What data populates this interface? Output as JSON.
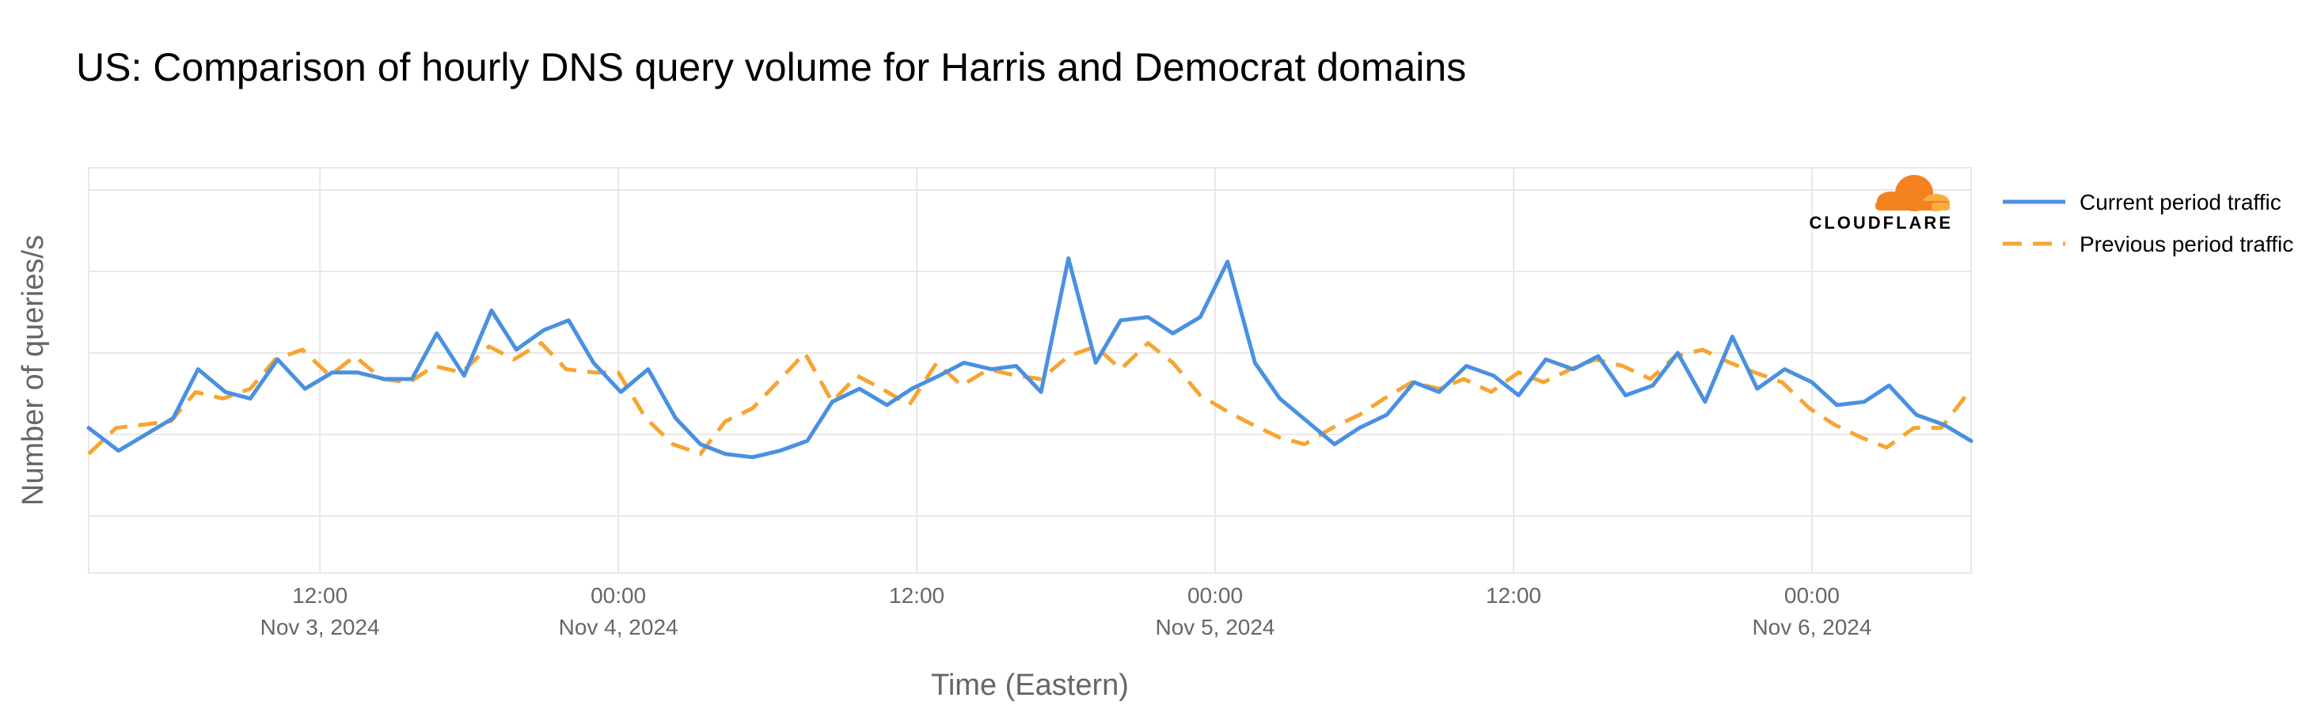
{
  "chart_data": {
    "type": "line",
    "title": "US: Comparison of hourly DNS query volume for Harris and Democrat domains",
    "xlabel": "Time (Eastern)",
    "ylabel": "Number of queries/s",
    "y_tick_labels_shown": false,
    "x_tick_labels": [
      {
        "time": "12:00",
        "date": "Nov 3, 2024",
        "hour": 12
      },
      {
        "time": "00:00",
        "date": "Nov 4, 2024",
        "hour": 24
      },
      {
        "time": "12:00",
        "date": "",
        "hour": 36
      },
      {
        "time": "00:00",
        "date": "Nov 5, 2024",
        "hour": 48
      },
      {
        "time": "12:00",
        "date": "",
        "hour": 60
      },
      {
        "time": "00:00",
        "date": "Nov 6, 2024",
        "hour": 72
      }
    ],
    "xlim": [
      2.7,
      78.4
    ],
    "ylim": [
      0,
      1
    ],
    "grid": true,
    "legend_position": "right",
    "series": [
      {
        "name": "Current period traffic",
        "color": "#4a90e2",
        "style": "solid",
        "x": [
          2.7,
          3.9,
          5.0,
          6.1,
          7.1,
          8.2,
          9.2,
          10.3,
          11.4,
          12.5,
          13.5,
          14.6,
          15.7,
          16.7,
          17.8,
          18.9,
          19.9,
          21.0,
          22.0,
          23.0,
          24.1,
          25.2,
          26.3,
          27.3,
          28.3,
          29.4,
          30.5,
          31.6,
          32.6,
          33.7,
          34.8,
          35.8,
          36.9,
          37.9,
          39.0,
          40.0,
          41.0,
          42.1,
          43.2,
          44.2,
          45.3,
          46.3,
          47.4,
          48.5,
          49.6,
          50.6,
          51.7,
          52.8,
          53.8,
          54.9,
          56.0,
          57.0,
          58.1,
          59.2,
          60.2,
          61.3,
          62.4,
          63.4,
          64.5,
          65.6,
          66.6,
          67.7,
          68.8,
          69.8,
          70.9,
          72.0,
          73.0,
          74.1,
          75.1,
          76.2,
          77.3,
          78.4
        ],
        "values": [
          0.27,
          0.2,
          0.25,
          0.3,
          0.45,
          0.38,
          0.36,
          0.48,
          0.39,
          0.44,
          0.44,
          0.42,
          0.42,
          0.56,
          0.43,
          0.63,
          0.51,
          0.57,
          0.6,
          0.47,
          0.38,
          0.45,
          0.3,
          0.22,
          0.19,
          0.18,
          0.2,
          0.23,
          0.35,
          0.39,
          0.34,
          0.39,
          0.43,
          0.47,
          0.45,
          0.46,
          0.38,
          0.79,
          0.47,
          0.6,
          0.61,
          0.56,
          0.61,
          0.78,
          0.47,
          0.36,
          0.29,
          0.22,
          0.27,
          0.31,
          0.41,
          0.38,
          0.46,
          0.43,
          0.37,
          0.48,
          0.45,
          0.49,
          0.37,
          0.4,
          0.5,
          0.35,
          0.55,
          0.39,
          0.45,
          0.41,
          0.34,
          0.35,
          0.4,
          0.31,
          0.28,
          0.23
        ]
      },
      {
        "name": "Previous period traffic",
        "color": "#f6a532",
        "style": "dashed",
        "x": [
          2.7,
          3.8,
          4.9,
          6.0,
          7.0,
          8.1,
          9.2,
          10.2,
          11.3,
          12.4,
          13.4,
          14.5,
          15.6,
          16.6,
          17.7,
          18.8,
          19.8,
          20.9,
          21.9,
          23.0,
          24.0,
          25.1,
          26.2,
          27.3,
          28.3,
          29.4,
          30.4,
          31.5,
          32.6,
          33.6,
          34.6,
          35.7,
          36.8,
          37.8,
          38.9,
          40.0,
          41.0,
          42.1,
          43.2,
          44.2,
          45.3,
          46.3,
          47.4,
          48.5,
          49.5,
          50.6,
          51.6,
          52.7,
          53.8,
          54.8,
          55.9,
          57.0,
          58.0,
          59.1,
          60.2,
          61.2,
          62.3,
          63.3,
          64.4,
          65.5,
          66.5,
          67.6,
          68.7,
          69.7,
          70.8,
          71.9,
          72.9,
          74.0,
          75.0,
          76.1,
          77.2,
          78.3
        ],
        "values": [
          0.19,
          0.27,
          0.28,
          0.29,
          0.38,
          0.36,
          0.39,
          0.48,
          0.51,
          0.43,
          0.49,
          0.42,
          0.41,
          0.46,
          0.44,
          0.52,
          0.48,
          0.53,
          0.45,
          0.44,
          0.44,
          0.3,
          0.22,
          0.19,
          0.29,
          0.33,
          0.41,
          0.5,
          0.35,
          0.43,
          0.39,
          0.34,
          0.47,
          0.4,
          0.45,
          0.43,
          0.42,
          0.49,
          0.52,
          0.45,
          0.53,
          0.47,
          0.37,
          0.32,
          0.28,
          0.24,
          0.22,
          0.27,
          0.31,
          0.36,
          0.41,
          0.39,
          0.42,
          0.38,
          0.44,
          0.41,
          0.45,
          0.48,
          0.46,
          0.42,
          0.49,
          0.51,
          0.47,
          0.44,
          0.41,
          0.33,
          0.28,
          0.24,
          0.21,
          0.27,
          0.27,
          0.38
        ]
      }
    ]
  },
  "brand": {
    "name": "CLOUDFLARE",
    "logo_icon": "cloudflare-cloud-icon",
    "colors": {
      "cloud_main": "#f48120",
      "cloud_light": "#faad3f"
    }
  },
  "colors": {
    "grid": "#e8e8e8",
    "tick_text": "#666666",
    "title_text": "#000000"
  }
}
